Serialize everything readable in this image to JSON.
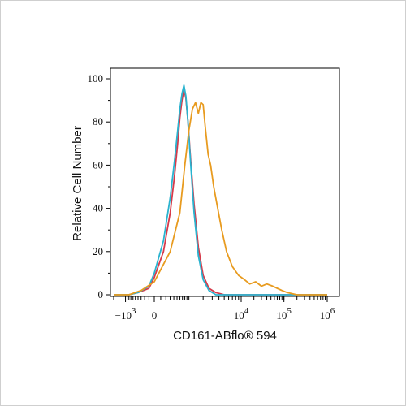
{
  "chart_data": {
    "type": "line",
    "title": "",
    "xlabel": "CD161-ABflo® 594",
    "ylabel": "Relative Cell Number",
    "ylim": [
      0,
      100
    ],
    "xlim": [
      -2000,
      1000000
    ],
    "x_scale": "biexponential",
    "y_ticks": [
      0,
      20,
      40,
      60,
      80,
      100
    ],
    "x_tick_labels": [
      {
        "value": -1000,
        "label": "−10",
        "exponent": "3"
      },
      {
        "value": 0,
        "label": "0",
        "exponent": ""
      },
      {
        "value": 10000,
        "label": "10",
        "exponent": "4"
      },
      {
        "value": 100000,
        "label": "10",
        "exponent": "5"
      },
      {
        "value": 1000000,
        "label": "10",
        "exponent": "6"
      }
    ],
    "grid": false,
    "legend": "none",
    "series": [
      {
        "color": "#d63a4a",
        "x": [
          -2000,
          -800,
          -400,
          -100,
          0,
          150,
          300,
          420,
          520,
          600,
          680,
          760,
          850,
          950,
          1100,
          1300,
          1600,
          2000,
          2600,
          3500,
          5000,
          10000,
          1000000
        ],
        "y": [
          0,
          0,
          1,
          3,
          8,
          20,
          38,
          55,
          70,
          82,
          90,
          95,
          91,
          80,
          62,
          42,
          22,
          9,
          3,
          1,
          0,
          0,
          0
        ]
      },
      {
        "color": "#2ab3cf",
        "x": [
          -2000,
          -800,
          -400,
          -100,
          0,
          150,
          300,
          420,
          520,
          600,
          680,
          760,
          850,
          950,
          1100,
          1300,
          1600,
          2000,
          2600,
          3500,
          5000,
          10000,
          1000000
        ],
        "y": [
          0,
          0,
          1,
          4,
          10,
          25,
          45,
          62,
          76,
          86,
          93,
          97,
          92,
          80,
          60,
          38,
          18,
          7,
          2,
          0,
          0,
          0,
          0
        ]
      },
      {
        "color": "#e89b1f",
        "x": [
          -2000,
          -800,
          -300,
          0,
          300,
          600,
          800,
          1000,
          1200,
          1400,
          1600,
          1800,
          2000,
          2200,
          2500,
          2800,
          3200,
          3800,
          4500,
          5500,
          7000,
          9000,
          12000,
          16000,
          22000,
          30000,
          40000,
          55000,
          70000,
          90000,
          120000,
          200000,
          400000,
          1000000
        ],
        "y": [
          0,
          0,
          2,
          6,
          20,
          38,
          60,
          76,
          86,
          89,
          84,
          89,
          88,
          78,
          65,
          60,
          50,
          40,
          30,
          20,
          13,
          9,
          7,
          5,
          6,
          4,
          5,
          4,
          3,
          2,
          1,
          0,
          0,
          0
        ]
      }
    ]
  }
}
